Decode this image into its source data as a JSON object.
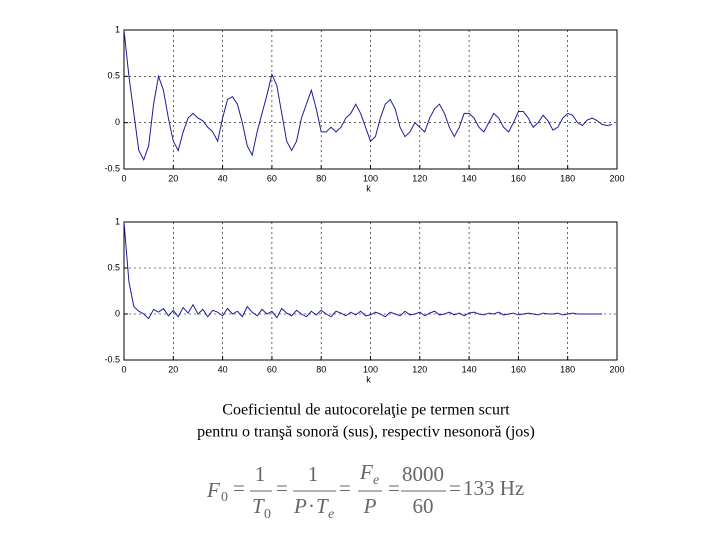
{
  "chart_data": [
    {
      "type": "line",
      "xlabel": "k",
      "xlim": [
        0,
        200
      ],
      "xticks": [
        0,
        20,
        40,
        60,
        80,
        100,
        120,
        140,
        160,
        180,
        200
      ],
      "ylim": [
        -0.5,
        1
      ],
      "yticks": [
        -0.5,
        0,
        0.5,
        1
      ],
      "grid": true,
      "x": [
        0,
        2,
        4,
        6,
        8,
        10,
        12,
        14,
        16,
        18,
        20,
        22,
        24,
        26,
        28,
        30,
        32,
        34,
        36,
        38,
        40,
        42,
        44,
        46,
        48,
        50,
        52,
        54,
        56,
        58,
        60,
        62,
        64,
        66,
        68,
        70,
        72,
        74,
        76,
        78,
        80,
        82,
        84,
        86,
        88,
        90,
        92,
        94,
        96,
        98,
        100,
        102,
        104,
        106,
        108,
        110,
        112,
        114,
        116,
        118,
        120,
        122,
        124,
        126,
        128,
        130,
        132,
        134,
        136,
        138,
        140,
        142,
        144,
        146,
        148,
        150,
        152,
        154,
        156,
        158,
        160,
        162,
        164,
        166,
        168,
        170,
        172,
        174,
        176,
        178,
        180,
        182,
        184,
        186,
        188,
        190,
        192,
        194,
        196,
        198
      ],
      "series": [
        {
          "color": "#1c1c9c",
          "values": [
            1,
            0.5,
            0.1,
            -0.3,
            -0.4,
            -0.25,
            0.2,
            0.5,
            0.35,
            0.05,
            -0.2,
            -0.3,
            -0.1,
            0.05,
            0.1,
            0.05,
            0.02,
            -0.05,
            -0.1,
            -0.2,
            0.05,
            0.25,
            0.28,
            0.2,
            0,
            -0.25,
            -0.35,
            -0.1,
            0.1,
            0.3,
            0.52,
            0.4,
            0.1,
            -0.2,
            -0.3,
            -0.2,
            0.05,
            0.2,
            0.35,
            0.15,
            -0.1,
            -0.1,
            -0.05,
            -0.1,
            -0.05,
            0.05,
            0.1,
            0.2,
            0.1,
            -0.05,
            -0.2,
            -0.15,
            0.05,
            0.2,
            0.25,
            0.15,
            -0.05,
            -0.15,
            -0.1,
            0,
            -0.05,
            -0.1,
            0.05,
            0.15,
            0.2,
            0.1,
            -0.05,
            -0.15,
            -0.05,
            0.1,
            0.1,
            0.05,
            -0.05,
            -0.1,
            0,
            0.1,
            0.05,
            -0.05,
            -0.1,
            0,
            0.12,
            0.12,
            0.05,
            -0.05,
            0,
            0.08,
            0.02,
            -0.08,
            -0.05,
            0.05,
            0.1,
            0.08,
            0,
            -0.03,
            0.03,
            0.05,
            0.02,
            -0.02,
            -0.03,
            -0.02
          ]
        }
      ]
    },
    {
      "type": "line",
      "xlabel": "k",
      "xlim": [
        0,
        200
      ],
      "xticks": [
        0,
        20,
        40,
        60,
        80,
        100,
        120,
        140,
        160,
        180,
        200
      ],
      "ylim": [
        -0.5,
        1
      ],
      "yticks": [
        -0.5,
        0,
        0.5,
        1
      ],
      "grid": true,
      "x": [
        0,
        2,
        4,
        6,
        8,
        10,
        12,
        14,
        16,
        18,
        20,
        22,
        24,
        26,
        28,
        30,
        32,
        34,
        36,
        38,
        40,
        42,
        44,
        46,
        48,
        50,
        52,
        54,
        56,
        58,
        60,
        62,
        64,
        66,
        68,
        70,
        72,
        74,
        76,
        78,
        80,
        82,
        84,
        86,
        88,
        90,
        92,
        94,
        96,
        98,
        100,
        102,
        104,
        106,
        108,
        110,
        112,
        114,
        116,
        118,
        120,
        122,
        124,
        126,
        128,
        130,
        132,
        134,
        136,
        138,
        140,
        142,
        144,
        146,
        148,
        150,
        152,
        154,
        156,
        158,
        160,
        162,
        164,
        166,
        168,
        170,
        172,
        174,
        176,
        178,
        180,
        182,
        184,
        186,
        188,
        190,
        192,
        194
      ],
      "series": [
        {
          "color": "#1c1c9c",
          "values": [
            1,
            0.35,
            0.08,
            0.03,
            0.0,
            -0.05,
            0.05,
            0.02,
            0.06,
            -0.02,
            0.04,
            -0.03,
            0.07,
            0.01,
            0.1,
            0.0,
            0.05,
            -0.03,
            0.04,
            0.02,
            -0.02,
            0.06,
            0.0,
            0.03,
            -0.03,
            0.08,
            0.02,
            -0.02,
            0.05,
            0.0,
            0.03,
            -0.04,
            0.06,
            0.01,
            -0.02,
            0.04,
            0.0,
            -0.03,
            0.03,
            -0.01,
            0.04,
            0.0,
            -0.03,
            0.03,
            0.01,
            -0.02,
            0.02,
            -0.01,
            0.03,
            -0.02,
            -0.01,
            0.02,
            0.0,
            -0.03,
            0.02,
            0.0,
            -0.02,
            0.03,
            -0.01,
            0.0,
            0.02,
            -0.02,
            0.01,
            0.03,
            -0.01,
            0.0,
            0.02,
            -0.01,
            0.01,
            -0.02,
            0.01,
            0.02,
            0.0,
            -0.01,
            0.01,
            0.0,
            0.02,
            -0.01,
            0.0,
            0.01,
            -0.01,
            0.0,
            0.01,
            0.0,
            -0.01,
            0.01,
            0.0,
            0.0,
            0.01,
            -0.01,
            0.0,
            0.01,
            0.0,
            0.0,
            0.0,
            0.0,
            0.0,
            0.0
          ]
        }
      ]
    }
  ],
  "caption": [
    "Coeficientul de autocorelaţie pe termen scurt",
    "pentru o tranşă sonoră (sus), respectiv nesonoră (jos)"
  ],
  "formula": {
    "F": "F",
    "sub0": "0",
    "eq": "=",
    "one": "1",
    "T": "T",
    "P": "P",
    "dot": "·",
    "sube": "e",
    "num": "8000",
    "den": "60",
    "result": "133 Hz"
  }
}
